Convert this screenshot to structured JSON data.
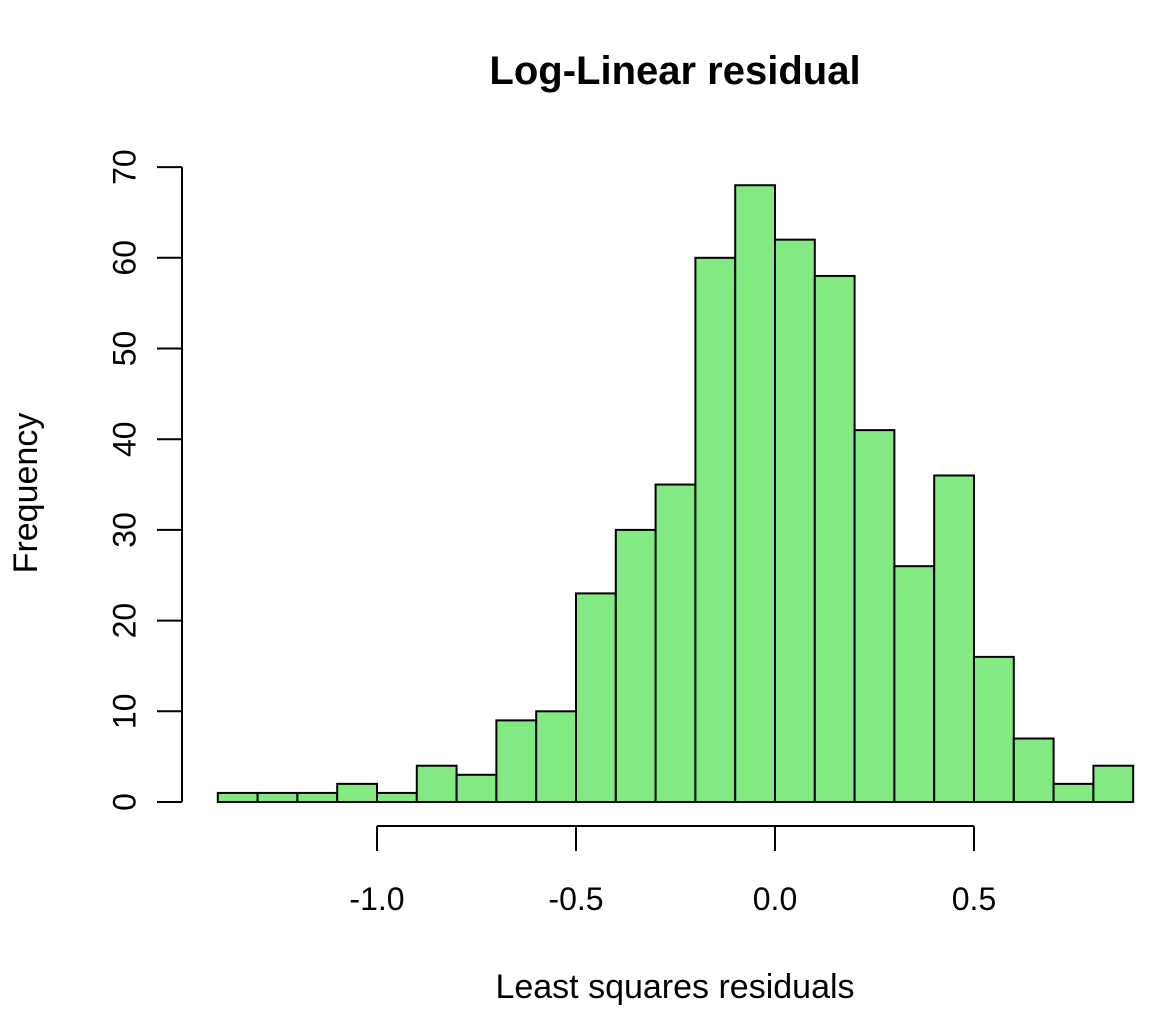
{
  "chart_data": {
    "type": "bar",
    "title": "Log-Linear residual",
    "xlabel": "Least squares residuals",
    "ylabel": "Frequency",
    "bin_width": 0.1,
    "bin_edges": [
      -1.4,
      -1.3,
      -1.2,
      -1.1,
      -1.0,
      -0.9,
      -0.8,
      -0.7,
      -0.6,
      -0.5,
      -0.4,
      -0.3,
      -0.2,
      -0.1,
      0.0,
      0.1,
      0.2,
      0.3,
      0.4,
      0.5,
      0.6,
      0.7,
      0.8,
      0.9
    ],
    "values": [
      1,
      1,
      1,
      2,
      1,
      4,
      3,
      9,
      10,
      23,
      30,
      35,
      60,
      68,
      62,
      58,
      41,
      26,
      36,
      16,
      7,
      2,
      4
    ],
    "xlim": [
      -1.4,
      0.9
    ],
    "ylim": [
      0,
      70
    ],
    "x_ticks": [
      -1.0,
      -0.5,
      0.0,
      0.5
    ],
    "x_tick_labels": [
      "-1.0",
      "-0.5",
      "0.0",
      "0.5"
    ],
    "y_ticks": [
      0,
      10,
      20,
      30,
      40,
      50,
      60,
      70
    ],
    "y_tick_labels": [
      "0",
      "10",
      "20",
      "30",
      "40",
      "50",
      "60",
      "70"
    ],
    "bar_color": "#83e983",
    "grid": false
  }
}
